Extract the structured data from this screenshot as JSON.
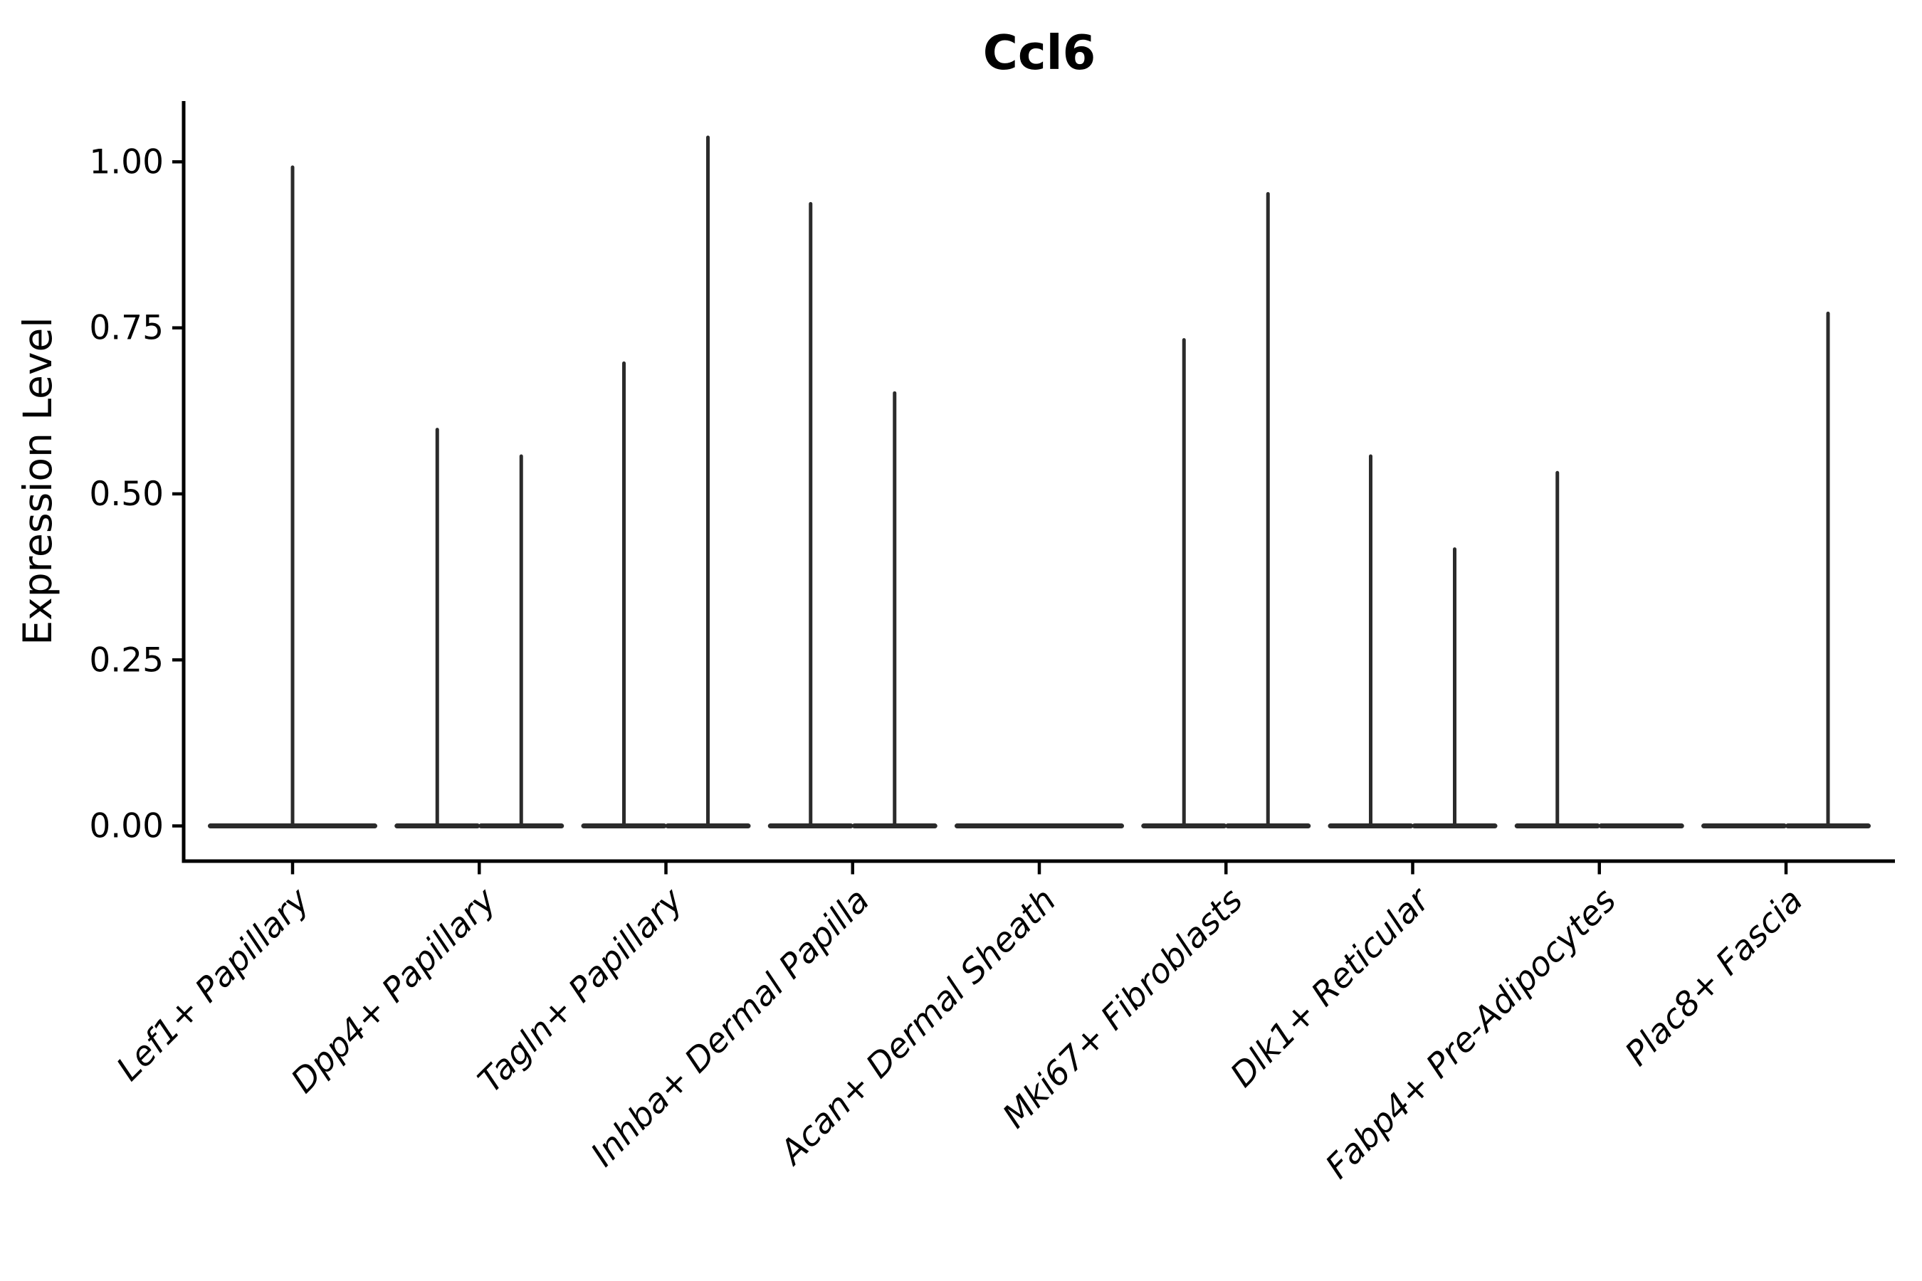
{
  "page": {
    "background": "#ffffff"
  },
  "chart_data": {
    "type": "violin",
    "title": "Ccl6",
    "ylabel": "Expression Level",
    "xlabel": "",
    "grid": false,
    "legend": "none",
    "ylim": [
      -0.053,
      1.0915
    ],
    "yticks": [
      {
        "value": 0.0,
        "label": "0.00"
      },
      {
        "value": 0.25,
        "label": "0.25"
      },
      {
        "value": 0.5,
        "label": "0.50"
      },
      {
        "value": 0.75,
        "label": "0.75"
      },
      {
        "value": 1.0,
        "label": "1.00"
      }
    ],
    "categories": [
      "Lef1+ Papillary",
      "Dpp4+ Papillary",
      "Tagln+ Papillary",
      "Inhba+ Dermal Papilla",
      "Acan+ Dermal Sheath",
      "Mki67+ Fibroblasts",
      "Dlk1+ Reticular",
      "Fabp4+ Pre-Adipocytes",
      "Plac8+ Fascia"
    ],
    "violins_by_category": [
      [
        {
          "slot": "full",
          "max": 0.995
        }
      ],
      [
        {
          "slot": "left",
          "max": 0.6
        },
        {
          "slot": "right",
          "max": 0.56
        }
      ],
      [
        {
          "slot": "left",
          "max": 0.7
        },
        {
          "slot": "right",
          "max": 1.04
        }
      ],
      [
        {
          "slot": "left",
          "max": 0.94
        },
        {
          "slot": "right",
          "max": 0.655
        }
      ],
      [
        {
          "slot": "full",
          "max": 0
        }
      ],
      [
        {
          "slot": "left",
          "max": 0.735
        },
        {
          "slot": "right",
          "max": 0.955
        }
      ],
      [
        {
          "slot": "left",
          "max": 0.56
        },
        {
          "slot": "right",
          "max": 0.42
        }
      ],
      [
        {
          "slot": "left",
          "max": 0.535
        },
        {
          "slot": "right",
          "max": 0
        }
      ],
      [
        {
          "slot": "left",
          "max": 0
        },
        {
          "slot": "right",
          "max": 0.775
        }
      ]
    ],
    "style": {
      "violin_color": "#2b2b2b",
      "axis_color": "#000000",
      "text_color": "#000000",
      "background": "#ffffff"
    }
  }
}
